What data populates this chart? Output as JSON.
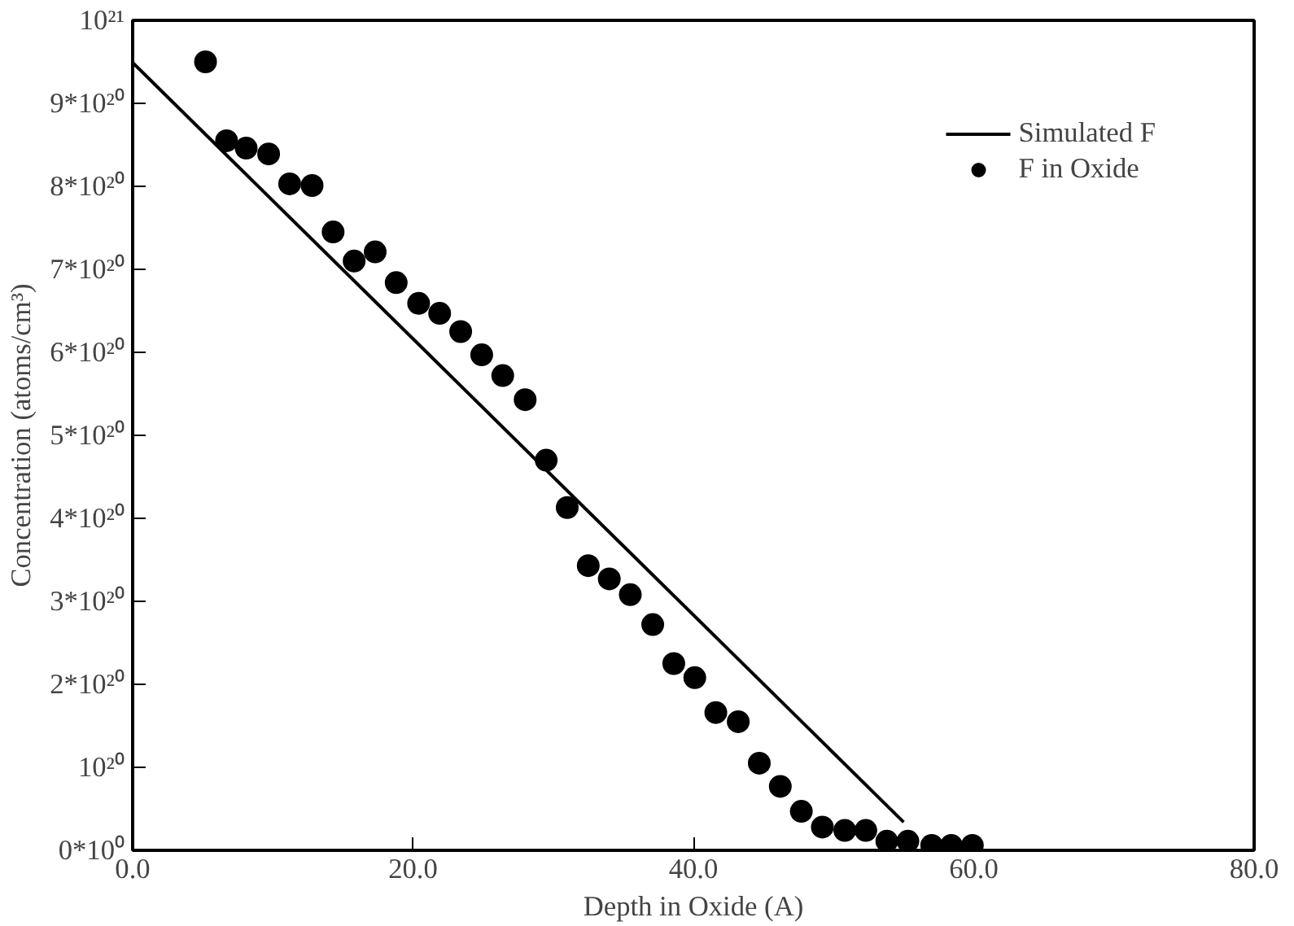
{
  "chart_data": {
    "type": "scatter",
    "xlabel": "Depth in Oxide (A)",
    "ylabel": "Concentration (atoms/cm³)",
    "xlim": [
      0,
      80
    ],
    "ylim": [
      0,
      1e+21
    ],
    "xticks": [
      {
        "value": 0,
        "label": "0.0"
      },
      {
        "value": 20,
        "label": "20.0"
      },
      {
        "value": 40,
        "label": "40.0"
      },
      {
        "value": 60,
        "label": "60.0"
      },
      {
        "value": 80,
        "label": "80.0"
      }
    ],
    "yticks": [
      {
        "value": 0,
        "label": "0*10⁰"
      },
      {
        "value": 1e+20,
        "label": "10²⁰"
      },
      {
        "value": 2e+20,
        "label": "2*10²⁰"
      },
      {
        "value": 3e+20,
        "label": "3*10²⁰"
      },
      {
        "value": 4e+20,
        "label": "4*10²⁰"
      },
      {
        "value": 5e+20,
        "label": "5*10²⁰"
      },
      {
        "value": 6e+20,
        "label": "6*10²⁰"
      },
      {
        "value": 7e+20,
        "label": "7*10²⁰"
      },
      {
        "value": 8e+20,
        "label": "8*10²⁰"
      },
      {
        "value": 9e+20,
        "label": "9*10²⁰"
      },
      {
        "value": 1e+21,
        "label": "10²¹"
      }
    ],
    "grid": false,
    "legend": "top right",
    "series": [
      {
        "name": "Simulated F",
        "type": "line",
        "color": "#000000",
        "line_style": "solid",
        "marker": "none",
        "x": [
          0,
          55.0
        ],
        "values": [
          9.49e+20,
          3.4e+19
        ]
      },
      {
        "name": "F in Oxide",
        "color": "#000000",
        "marker": "circle",
        "x": [
          5.2,
          6.7,
          8.1,
          9.7,
          11.2,
          12.8,
          14.3,
          15.8,
          17.3,
          18.8,
          20.4,
          21.9,
          23.4,
          24.9,
          26.4,
          28.0,
          29.5,
          31.0,
          32.5,
          34.0,
          35.5,
          37.1,
          38.6,
          40.1,
          41.6,
          43.2,
          44.7,
          46.2,
          47.7,
          49.2,
          50.8,
          52.3,
          53.8,
          55.3,
          57.0,
          58.4,
          59.9
        ],
        "values": [
          9.5e+20,
          8.55e+20,
          8.46e+20,
          8.39e+20,
          8.03e+20,
          8.01e+20,
          7.45e+20,
          7.1e+20,
          7.21e+20,
          6.84e+20,
          6.59e+20,
          6.47e+20,
          6.25e+20,
          5.97e+20,
          5.72e+20,
          5.43e+20,
          4.7e+20,
          4.13e+20,
          3.43e+20,
          3.27e+20,
          3.08e+20,
          2.72e+20,
          2.25e+20,
          2.08e+20,
          1.66e+20,
          1.55e+20,
          1.05e+20,
          7.7e+19,
          4.7e+19,
          2.8e+19,
          2.4e+19,
          2.4e+19,
          1.1e+19,
          1.1e+19,
          6e+18,
          6e+18,
          6e+18
        ]
      }
    ]
  }
}
